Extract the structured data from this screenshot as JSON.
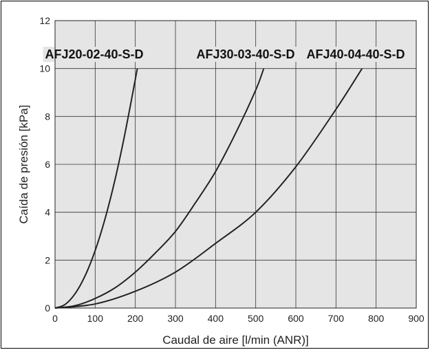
{
  "chart_data": {
    "type": "line",
    "title": "",
    "xlabel": "Caudal de aire [l/min (ANR)]",
    "ylabel": "Caída de presión [kPa]",
    "xlim": [
      0,
      900
    ],
    "ylim": [
      0,
      12
    ],
    "xticks": [
      0,
      100,
      200,
      300,
      400,
      500,
      600,
      700,
      800,
      900
    ],
    "yticks": [
      0,
      2,
      4,
      6,
      8,
      10,
      12
    ],
    "grid": true,
    "background": "#e5e5e5",
    "line_color": "#222222",
    "series": [
      {
        "name": "AFJ20-02-40-S-D",
        "points": [
          [
            0,
            0
          ],
          [
            25,
            0.15
          ],
          [
            50,
            0.6
          ],
          [
            75,
            1.35
          ],
          [
            100,
            2.4
          ],
          [
            125,
            3.75
          ],
          [
            150,
            5.4
          ],
          [
            175,
            7.35
          ],
          [
            205,
            10.0
          ]
        ]
      },
      {
        "name": "AFJ30-03-40-S-D",
        "points": [
          [
            0,
            0
          ],
          [
            50,
            0.1
          ],
          [
            100,
            0.4
          ],
          [
            150,
            0.85
          ],
          [
            200,
            1.5
          ],
          [
            250,
            2.3
          ],
          [
            300,
            3.2
          ],
          [
            350,
            4.4
          ],
          [
            400,
            5.7
          ],
          [
            450,
            7.3
          ],
          [
            500,
            9.1
          ],
          [
            520,
            10.0
          ]
        ]
      },
      {
        "name": "AFJ40-04-40-S-D",
        "points": [
          [
            0,
            0
          ],
          [
            100,
            0.17
          ],
          [
            200,
            0.7
          ],
          [
            300,
            1.5
          ],
          [
            400,
            2.7
          ],
          [
            500,
            4.0
          ],
          [
            600,
            5.9
          ],
          [
            700,
            8.3
          ],
          [
            765,
            10.0
          ]
        ]
      }
    ]
  }
}
